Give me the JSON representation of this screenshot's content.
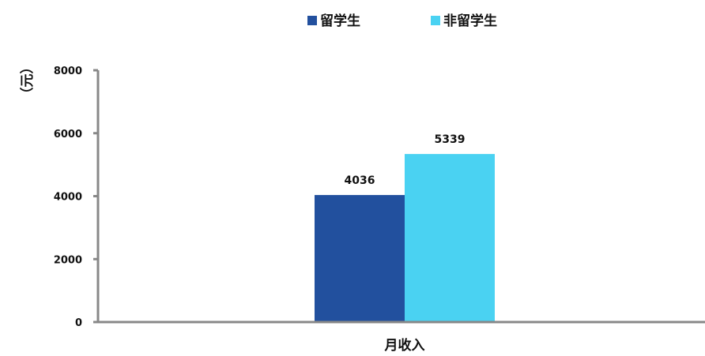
{
  "chart_data": {
    "type": "bar",
    "categories": [
      "月收入"
    ],
    "series": [
      {
        "name": "留学生",
        "values": [
          4036
        ],
        "color": "#22509e"
      },
      {
        "name": "非留学生",
        "values": [
          5339
        ],
        "color": "#4ad2f2"
      }
    ],
    "data_labels": [
      "4036",
      "5339"
    ],
    "ylim": [
      0,
      8000
    ],
    "yticks": [
      0,
      2000,
      4000,
      6000,
      8000
    ],
    "ytick_labels": [
      "0",
      "2000",
      "4000",
      "6000",
      "8000"
    ],
    "ylabel": "（元）",
    "xlabel": "",
    "legend_position": "top-center",
    "grid": false,
    "axis_color": "#888888"
  }
}
